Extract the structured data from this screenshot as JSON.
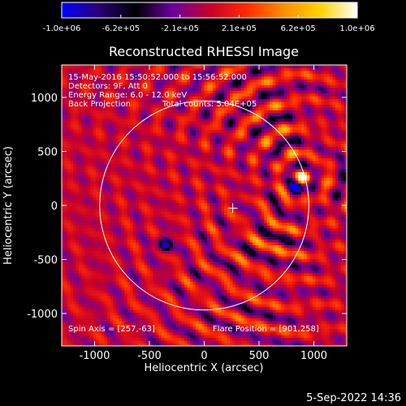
{
  "colorbar": {
    "colors": [
      "#0000ff",
      "#2a007a",
      "#000000",
      "#6a00a0",
      "#c8002a",
      "#ff2a00",
      "#ff8c00",
      "#ffd400",
      "#ffffff"
    ],
    "tick_labels": [
      "-1.0e+06",
      "-6.2e+05",
      "-2.1e+05",
      "2.1e+05",
      "6.2e+05",
      "1.0e+06"
    ]
  },
  "chart_data": {
    "type": "heatmap",
    "title": "Reconstructed RHESSI Image",
    "xlabel": "Heliocentric X (arcsec)",
    "ylabel": "Heliocentric Y (arcsec)",
    "xlim": [
      -1300,
      1300
    ],
    "ylim": [
      -1300,
      1300
    ],
    "xticks": [
      -1000,
      -500,
      0,
      500,
      1000
    ],
    "yticks": [
      -1000,
      -500,
      0,
      500,
      1000
    ],
    "xtick_labels": [
      "-1000",
      "-500",
      "0",
      "500",
      "1000"
    ],
    "ytick_labels": [
      "-1000",
      "-500",
      "0",
      "500",
      "1000"
    ],
    "value_range": [
      -1000000,
      1000000
    ],
    "solar_limb_radius": 954,
    "sun_center_marker": [
      260,
      -25
    ],
    "sources": [
      {
        "x": 901,
        "y": 258,
        "value": 1000000
      },
      {
        "x": -360,
        "y": -360,
        "value": -900000
      },
      {
        "x": 840,
        "y": 170,
        "value": -800000
      }
    ],
    "annotations": {
      "time_range": "15-May-2016 15:50:52.000 to 15:56:52.000",
      "detectors": "Detectors: 9F, Att 0",
      "energy": "Energy Range: 6.0 - 12.0 keV",
      "method": "Back Projection",
      "counts": "Total counts: 5.04E+05",
      "spin_axis": "Spin Axis = [257,-63]",
      "flare_position": "Flare Position = [901,258]"
    }
  },
  "footer": {
    "date": "5-Sep-2022 14:36"
  }
}
